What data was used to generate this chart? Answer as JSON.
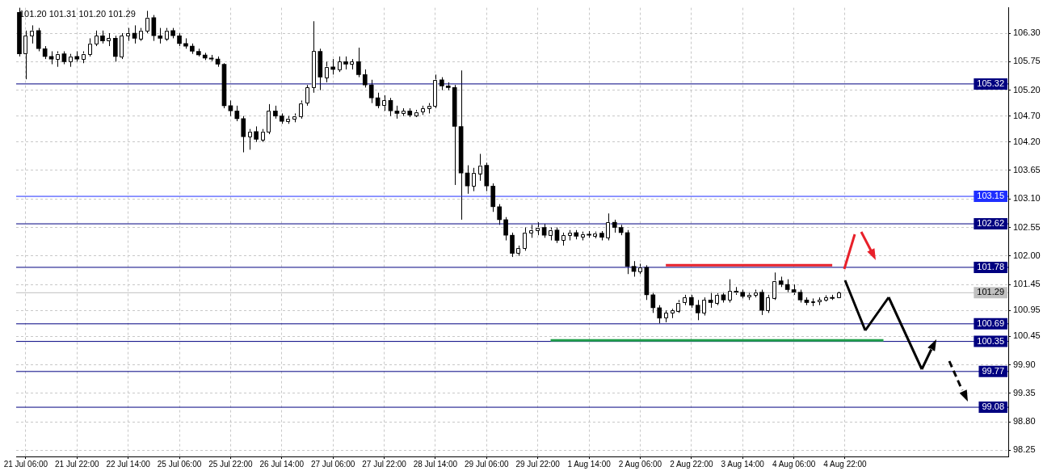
{
  "chart_data": {
    "type": "candlestick",
    "color": "#000000",
    "categories": [
      null,
      "21 Jul 06:00",
      null,
      null,
      null,
      null,
      null,
      null,
      null,
      "21 Jul 22:00",
      null,
      null,
      null,
      null,
      null,
      null,
      null,
      "22 Jul 14:00",
      null,
      null,
      null,
      null,
      null,
      null,
      null,
      "25 Jul 06:00",
      null,
      null,
      null,
      null,
      null,
      null,
      null,
      "25 Jul 22:00",
      null,
      null,
      null,
      null,
      null,
      null,
      null,
      "26 Jul 14:00",
      null,
      null,
      null,
      null,
      null,
      null,
      null,
      "27 Jul 06:00",
      null,
      null,
      null,
      null,
      null,
      null,
      null,
      "27 Jul 22:00",
      null,
      null,
      null,
      null,
      null,
      null,
      null,
      "28 Jul 14:00",
      null,
      null,
      null,
      null,
      null,
      null,
      null,
      "29 Jul 06:00",
      null,
      null,
      null,
      null,
      null,
      null,
      null,
      "29 Jul 22:00",
      null,
      null,
      null,
      null,
      null,
      null,
      null,
      "1 Aug 14:00",
      null,
      null,
      null,
      null,
      null,
      null,
      null,
      "2 Aug 06:00",
      null,
      null,
      null,
      null,
      null,
      null,
      null,
      "2 Aug 22:00",
      null,
      null,
      null,
      null,
      null,
      null,
      null,
      "3 Aug 14:00",
      null,
      null,
      null,
      null,
      null,
      null,
      null,
      "4 Aug 06:00",
      null,
      null,
      null,
      null,
      null,
      null,
      null,
      "4 Aug 22:00",
      null,
      null,
      null,
      null,
      null,
      null,
      null,
      null,
      null,
      null,
      null,
      null,
      null,
      null,
      null,
      null,
      null,
      null,
      null,
      null,
      null,
      null,
      null,
      null,
      null
    ],
    "ohlc": [
      [
        106.7,
        106.79,
        105.85,
        105.9
      ],
      [
        105.9,
        106.35,
        105.41,
        106.25
      ],
      [
        106.25,
        106.45,
        106.1,
        106.35
      ],
      [
        106.35,
        106.4,
        105.95,
        106.0
      ],
      [
        106.0,
        106.05,
        105.8,
        105.85
      ],
      [
        105.85,
        105.95,
        105.7,
        105.8
      ],
      [
        105.8,
        105.95,
        105.65,
        105.9
      ],
      [
        105.9,
        105.95,
        105.7,
        105.75
      ],
      [
        105.75,
        105.9,
        105.65,
        105.85
      ],
      [
        105.85,
        105.95,
        105.75,
        105.8
      ],
      [
        105.8,
        105.95,
        105.72,
        105.9
      ],
      [
        105.9,
        106.2,
        105.85,
        106.1
      ],
      [
        106.1,
        106.35,
        106.05,
        106.25
      ],
      [
        106.25,
        106.35,
        106.1,
        106.15
      ],
      [
        106.15,
        106.3,
        106.05,
        106.2
      ],
      [
        106.2,
        106.25,
        105.75,
        105.85
      ],
      [
        105.85,
        106.3,
        105.8,
        106.25
      ],
      [
        106.25,
        106.4,
        106.15,
        106.3
      ],
      [
        106.3,
        106.45,
        106.1,
        106.2
      ],
      [
        106.2,
        106.4,
        106.15,
        106.35
      ],
      [
        106.35,
        106.73,
        106.3,
        106.6
      ],
      [
        106.6,
        106.65,
        106.15,
        106.25
      ],
      [
        106.25,
        106.4,
        106.1,
        106.2
      ],
      [
        106.2,
        106.4,
        106.15,
        106.35
      ],
      [
        106.35,
        106.4,
        106.2,
        106.25
      ],
      [
        106.25,
        106.3,
        106.05,
        106.1
      ],
      [
        106.1,
        106.2,
        106.0,
        106.05
      ],
      [
        106.05,
        106.1,
        105.9,
        105.95
      ],
      [
        105.95,
        106.0,
        105.85,
        105.88
      ],
      [
        105.88,
        105.92,
        105.78,
        105.82
      ],
      [
        105.82,
        105.88,
        105.76,
        105.8
      ],
      [
        105.8,
        105.85,
        105.65,
        105.7
      ],
      [
        105.7,
        105.72,
        104.85,
        104.9
      ],
      [
        104.9,
        105.0,
        104.7,
        104.8
      ],
      [
        104.8,
        104.9,
        104.6,
        104.65
      ],
      [
        104.65,
        104.7,
        104.0,
        104.3
      ],
      [
        104.3,
        104.45,
        104.05,
        104.4
      ],
      [
        104.4,
        104.5,
        104.2,
        104.25
      ],
      [
        104.25,
        104.45,
        104.2,
        104.4
      ],
      [
        104.4,
        104.93,
        104.35,
        104.8
      ],
      [
        104.8,
        104.9,
        104.65,
        104.7
      ],
      [
        104.7,
        104.75,
        104.55,
        104.6
      ],
      [
        104.6,
        104.7,
        104.55,
        104.65
      ],
      [
        104.65,
        104.75,
        104.58,
        104.7
      ],
      [
        104.7,
        105.0,
        104.65,
        104.95
      ],
      [
        104.95,
        105.3,
        104.9,
        105.25
      ],
      [
        105.25,
        106.53,
        105.15,
        105.95
      ],
      [
        105.95,
        106.0,
        105.2,
        105.45
      ],
      [
        105.45,
        105.75,
        105.35,
        105.65
      ],
      [
        105.65,
        105.8,
        105.5,
        105.6
      ],
      [
        105.6,
        105.85,
        105.55,
        105.75
      ],
      [
        105.75,
        105.85,
        105.6,
        105.7
      ],
      [
        105.7,
        105.8,
        105.6,
        105.75
      ],
      [
        105.75,
        106.02,
        105.45,
        105.5
      ],
      [
        105.5,
        105.6,
        105.25,
        105.3
      ],
      [
        105.3,
        105.4,
        104.95,
        105.05
      ],
      [
        105.05,
        105.15,
        104.85,
        104.9
      ],
      [
        104.9,
        105.1,
        104.8,
        105.0
      ],
      [
        105.0,
        105.05,
        104.7,
        104.8
      ],
      [
        104.8,
        104.9,
        104.65,
        104.75
      ],
      [
        104.75,
        104.85,
        104.7,
        104.8
      ],
      [
        104.8,
        104.85,
        104.68,
        104.72
      ],
      [
        104.72,
        104.82,
        104.68,
        104.78
      ],
      [
        104.78,
        104.9,
        104.72,
        104.85
      ],
      [
        104.85,
        104.95,
        104.75,
        104.9
      ],
      [
        104.9,
        105.5,
        104.85,
        105.4
      ],
      [
        105.4,
        105.45,
        105.2,
        105.28
      ],
      [
        105.28,
        105.35,
        105.2,
        105.25
      ],
      [
        105.25,
        105.3,
        103.37,
        104.5
      ],
      [
        104.5,
        105.58,
        102.7,
        103.6
      ],
      [
        103.6,
        103.75,
        103.2,
        103.35
      ],
      [
        103.35,
        103.7,
        103.25,
        103.6
      ],
      [
        103.6,
        103.97,
        103.45,
        103.75
      ],
      [
        103.75,
        103.8,
        103.25,
        103.35
      ],
      [
        103.35,
        103.4,
        102.85,
        102.95
      ],
      [
        102.95,
        103.0,
        102.6,
        102.7
      ],
      [
        102.7,
        102.75,
        102.3,
        102.4
      ],
      [
        102.4,
        102.45,
        101.98,
        102.05
      ],
      [
        102.05,
        102.2,
        102.0,
        102.15
      ],
      [
        102.15,
        102.55,
        102.1,
        102.45
      ],
      [
        102.45,
        102.6,
        102.35,
        102.5
      ],
      [
        102.5,
        102.65,
        102.4,
        102.55
      ],
      [
        102.55,
        102.62,
        102.35,
        102.4
      ],
      [
        102.4,
        102.55,
        102.3,
        102.5
      ],
      [
        102.5,
        102.55,
        102.25,
        102.3
      ],
      [
        102.3,
        102.45,
        102.2,
        102.4
      ],
      [
        102.4,
        102.5,
        102.3,
        102.45
      ],
      [
        102.45,
        102.5,
        102.32,
        102.38
      ],
      [
        102.38,
        102.47,
        102.3,
        102.42
      ],
      [
        102.42,
        102.48,
        102.35,
        102.4
      ],
      [
        102.4,
        102.47,
        102.34,
        102.44
      ],
      [
        102.44,
        102.48,
        102.3,
        102.36
      ],
      [
        102.36,
        102.82,
        102.3,
        102.65
      ],
      [
        102.65,
        102.7,
        102.45,
        102.55
      ],
      [
        102.55,
        102.6,
        102.4,
        102.45
      ],
      [
        102.45,
        102.5,
        101.65,
        101.8
      ],
      [
        101.8,
        101.9,
        101.6,
        101.7
      ],
      [
        101.7,
        101.85,
        101.65,
        101.78
      ],
      [
        101.78,
        101.82,
        101.15,
        101.25
      ],
      [
        101.25,
        101.3,
        100.9,
        101.0
      ],
      [
        101.0,
        101.05,
        100.7,
        100.8
      ],
      [
        100.8,
        100.95,
        100.72,
        100.9
      ],
      [
        100.9,
        100.98,
        100.8,
        100.95
      ],
      [
        100.95,
        101.15,
        100.9,
        101.1
      ],
      [
        101.1,
        101.25,
        101.05,
        101.2
      ],
      [
        101.2,
        101.25,
        101.0,
        101.05
      ],
      [
        101.05,
        101.15,
        100.76,
        100.9
      ],
      [
        100.9,
        101.2,
        100.85,
        101.15
      ],
      [
        101.15,
        101.3,
        101.0,
        101.1
      ],
      [
        101.1,
        101.28,
        101.05,
        101.25
      ],
      [
        101.25,
        101.3,
        101.1,
        101.15
      ],
      [
        101.15,
        101.55,
        101.1,
        101.32
      ],
      [
        101.32,
        101.4,
        101.25,
        101.3
      ],
      [
        101.3,
        101.35,
        101.18,
        101.22
      ],
      [
        101.22,
        101.3,
        101.15,
        101.25
      ],
      [
        101.25,
        101.35,
        101.2,
        101.3
      ],
      [
        101.3,
        101.35,
        100.86,
        100.95
      ],
      [
        100.95,
        101.25,
        100.9,
        101.2
      ],
      [
        101.2,
        101.68,
        101.15,
        101.52
      ],
      [
        101.52,
        101.6,
        101.4,
        101.45
      ],
      [
        101.45,
        101.55,
        101.3,
        101.35
      ],
      [
        101.35,
        101.45,
        101.25,
        101.3
      ],
      [
        101.3,
        101.35,
        101.1,
        101.15
      ],
      [
        101.15,
        101.2,
        101.05,
        101.1
      ],
      [
        101.1,
        101.18,
        101.03,
        101.12
      ],
      [
        101.12,
        101.2,
        101.05,
        101.15
      ],
      [
        101.15,
        101.24,
        101.12,
        101.2
      ],
      [
        101.2,
        101.25,
        101.15,
        101.18
      ],
      [
        101.2,
        101.31,
        101.2,
        101.29
      ],
      null,
      null,
      null,
      null,
      null,
      null,
      null,
      null,
      null,
      null,
      null,
      null,
      null,
      null,
      null,
      null,
      null,
      null,
      null,
      null,
      null,
      null,
      null,
      null,
      null,
      null
    ],
    "colors": [
      "#000000",
      "#ffffff",
      "#ffffff",
      "#000000",
      "#000000",
      "#000000",
      "#ffffff",
      "#000000",
      "#ffffff",
      "#000000",
      "#ffffff",
      "#ffffff",
      "#ffffff",
      "#000000",
      "#ffffff",
      "#000000",
      "#ffffff",
      "#ffffff",
      "#000000",
      "#ffffff",
      "#ffffff",
      "#000000",
      "#000000",
      "#ffffff",
      "#000000",
      "#000000",
      "#000000",
      "#000000",
      "#000000",
      "#000000",
      "#000000",
      "#000000",
      "#000000",
      "#000000",
      "#000000",
      "#000000",
      "#ffffff",
      "#000000",
      "#ffffff",
      "#ffffff",
      "#000000",
      "#000000",
      "#ffffff",
      "#ffffff",
      "#ffffff",
      "#ffffff",
      "#ffffff",
      "#000000",
      "#ffffff",
      "#000000",
      "#ffffff",
      "#000000",
      "#ffffff",
      "#000000",
      "#000000",
      "#000000",
      "#000000",
      "#ffffff",
      "#000000",
      "#000000",
      "#ffffff",
      "#000000",
      "#ffffff",
      "#ffffff",
      "#ffffff",
      "#ffffff",
      "#000000",
      "#000000",
      "#000000",
      "#000000",
      "#000000",
      "#ffffff",
      "#ffffff",
      "#000000",
      "#000000",
      "#000000",
      "#000000",
      "#000000",
      "#ffffff",
      "#ffffff",
      "#ffffff",
      "#ffffff",
      "#000000",
      "#ffffff",
      "#000000",
      "#ffffff",
      "#ffffff",
      "#000000",
      "#ffffff",
      "#000000",
      "#ffffff",
      "#000000",
      "#ffffff",
      "#000000",
      "#000000",
      "#000000",
      "#000000",
      "#ffffff",
      "#000000",
      "#000000",
      "#000000",
      "#ffffff",
      "#ffffff",
      "#ffffff",
      "#ffffff",
      "#000000",
      "#000000",
      "#ffffff",
      "#000000",
      "#ffffff",
      "#000000",
      "#ffffff",
      "#000000",
      "#000000",
      "#ffffff",
      "#ffffff",
      "#000000",
      "#ffffff",
      "#ffffff",
      "#000000",
      "#000000",
      "#000000",
      "#000000",
      "#000000",
      "#ffffff",
      "#ffffff",
      "#ffffff",
      "#000000",
      "#ffffff",
      null,
      null,
      null,
      null,
      null,
      null,
      null,
      null,
      null,
      null,
      null,
      null,
      null,
      null,
      null,
      null,
      null,
      null,
      null,
      null,
      null,
      null,
      null,
      null,
      null,
      null
    ],
    "series": [
      {
        "type": "line",
        "color": "#e8202a",
        "values": [
          null,
          null,
          null,
          null,
          null,
          null,
          null,
          null,
          null,
          null,
          null,
          null,
          null,
          null,
          null,
          null,
          null,
          null,
          null,
          null,
          null,
          null,
          null,
          null,
          null,
          null,
          null,
          null,
          null,
          null,
          null,
          null,
          null,
          null,
          null,
          null,
          null,
          null,
          null,
          null,
          null,
          null,
          null,
          null,
          null,
          null,
          null,
          null,
          null,
          null,
          null,
          null,
          null,
          null,
          null,
          null,
          null,
          null,
          null,
          null,
          null,
          null,
          null,
          null,
          null,
          null,
          null,
          null,
          null,
          null,
          null,
          null,
          null,
          null,
          null,
          null,
          null,
          null,
          null,
          null,
          null,
          null,
          null,
          null,
          null,
          null,
          null,
          null,
          null,
          null,
          null,
          null,
          null,
          null,
          null,
          null,
          null,
          null,
          null,
          null,
          null,
          101.82,
          null,
          null,
          null,
          null,
          null,
          null,
          null,
          null,
          null,
          null,
          null,
          null,
          null,
          null,
          null,
          null,
          null,
          null,
          null,
          null,
          null,
          null,
          null,
          null,
          null,
          101.82,
          null,
          null,
          null,
          null,
          null,
          null,
          null,
          null,
          null,
          null,
          null,
          null,
          null,
          null,
          null,
          null,
          null,
          null,
          null,
          null,
          null,
          null,
          null,
          null,
          null,
          null,
          null
        ]
      },
      {
        "type": "line",
        "color": "#22a04b",
        "values": [
          null,
          null,
          null,
          null,
          null,
          null,
          null,
          null,
          null,
          null,
          null,
          null,
          null,
          null,
          null,
          null,
          null,
          null,
          null,
          null,
          null,
          null,
          null,
          null,
          null,
          null,
          null,
          null,
          null,
          null,
          null,
          null,
          null,
          null,
          null,
          null,
          null,
          null,
          null,
          null,
          null,
          null,
          null,
          null,
          null,
          null,
          null,
          null,
          null,
          null,
          null,
          null,
          null,
          null,
          null,
          null,
          null,
          null,
          null,
          null,
          null,
          null,
          null,
          null,
          null,
          null,
          null,
          null,
          null,
          null,
          null,
          null,
          null,
          null,
          null,
          null,
          null,
          null,
          null,
          null,
          null,
          null,
          null,
          100.37,
          null,
          null,
          null,
          null,
          null,
          null,
          null,
          null,
          null,
          null,
          null,
          null,
          null,
          null,
          null,
          null,
          null,
          null,
          null,
          null,
          null,
          null,
          null,
          null,
          null,
          null,
          null,
          null,
          null,
          null,
          null,
          null,
          null,
          null,
          null,
          null,
          null,
          null,
          null,
          null,
          null,
          null,
          null,
          null,
          null,
          null,
          null,
          null,
          null,
          null,
          null,
          100.37,
          null,
          null,
          null,
          null,
          null,
          null,
          null,
          null,
          null,
          null,
          null,
          null,
          null,
          null,
          null,
          null,
          null,
          null,
          null
        ]
      }
    ],
    "ylim": [
      98.13,
      106.79
    ],
    "yticks": [
      {
        "value": 106.3,
        "label": "106.30"
      },
      105.75,
      {
        "value": 105.2,
        "label": "105.20"
      },
      {
        "value": 104.7,
        "label": "104.70"
      },
      {
        "value": 104.2,
        "label": "104.20"
      },
      103.65,
      {
        "value": 103.1,
        "label": "103.10"
      },
      102.55,
      {
        "value": 102,
        "label": "102.00"
      },
      101.45,
      100.95,
      100.45,
      {
        "value": 99.9,
        "label": "99.90"
      },
      99.35,
      {
        "value": 98.8,
        "label": "98.80"
      },
      98.25
    ],
    "grid": true,
    "ref_lines": [
      {
        "axis": "y",
        "value": 105.32,
        "label": "105.32",
        "color": "#000080"
      },
      {
        "axis": "y",
        "value": 103.15,
        "label": "103.15",
        "color": "#1f2fff"
      },
      {
        "axis": "y",
        "value": 102.62,
        "label": "102.62",
        "color": "#000080"
      },
      {
        "axis": "y",
        "value": 101.78,
        "label": "101.78",
        "color": "#000080"
      },
      {
        "axis": "y",
        "value": 101.29,
        "label": "101.29",
        "color": "#c0c0c0"
      },
      {
        "axis": "y",
        "value": 100.69,
        "label": "100.69",
        "color": "#000080"
      },
      {
        "axis": "y",
        "value": 100.35,
        "label": "100.35",
        "color": "#000080"
      },
      {
        "axis": "y",
        "value": 99.77,
        "label": "99.77",
        "color": "#000080"
      },
      {
        "axis": "y",
        "value": 99.08,
        "label": "99.08",
        "color": "#000080"
      }
    ],
    "annotations": [
      "101.20 101.31 101.20 101.29"
    ]
  }
}
